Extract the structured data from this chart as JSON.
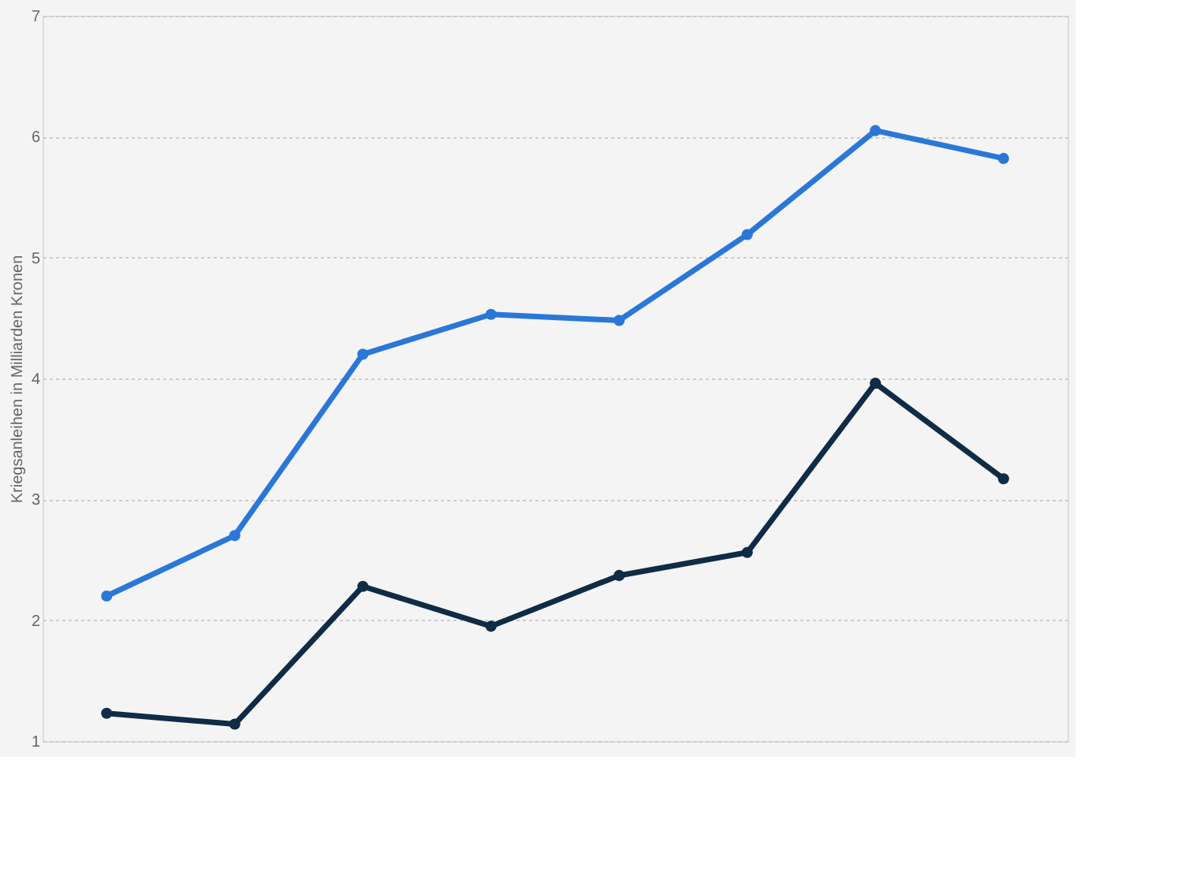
{
  "chart_data": {
    "type": "line",
    "ylabel": "Kriegsanleihen in Milliarden Kronen",
    "categories": [
      null,
      null,
      null,
      null,
      null,
      null,
      null,
      null
    ],
    "series": [
      {
        "color": "#2a77d8",
        "values": [
          2.2,
          2.7,
          4.2,
          4.53,
          4.48,
          5.19,
          6.05,
          5.82
        ]
      },
      {
        "color": "#0f2b45",
        "values": [
          1.23,
          1.14,
          2.28,
          1.95,
          2.37,
          2.56,
          3.96,
          3.17
        ]
      }
    ],
    "ylim": [
      1,
      7
    ],
    "yticks": [
      1,
      2,
      3,
      4,
      5,
      6,
      7
    ],
    "grid": "y",
    "marker": "circle",
    "line_style": "solid"
  }
}
